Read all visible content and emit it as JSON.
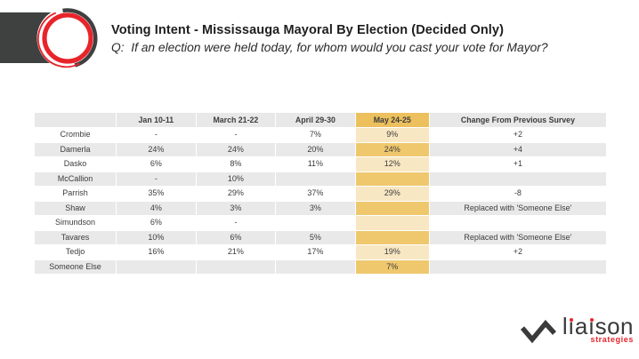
{
  "slide": {
    "title": "Voting Intent - Mississauga Mayoral By Election (Decided Only)",
    "question": "Q:  If an election were held today, for whom would you cast your vote for Mayor?"
  },
  "table": {
    "columns": [
      "",
      "Jan 10-11",
      "March 21-22",
      "April 29-30",
      "May 24-25",
      "Change From Previous Survey"
    ],
    "highlight_column_index": 4,
    "highlight_column": "May 24-25",
    "rows": [
      {
        "name": "Crombie",
        "values": [
          "-",
          "-",
          "7%",
          "9%"
        ],
        "change": "+2"
      },
      {
        "name": "Damerla",
        "values": [
          "24%",
          "24%",
          "20%",
          "24%"
        ],
        "change": "+4"
      },
      {
        "name": "Dasko",
        "values": [
          "6%",
          "8%",
          "11%",
          "12%"
        ],
        "change": "+1"
      },
      {
        "name": "McCallion",
        "values": [
          "-",
          "10%",
          "",
          ""
        ],
        "change": ""
      },
      {
        "name": "Parrish",
        "values": [
          "35%",
          "29%",
          "37%",
          "29%"
        ],
        "change": "-8"
      },
      {
        "name": "Shaw",
        "values": [
          "4%",
          "3%",
          "3%",
          ""
        ],
        "change": "Replaced with 'Someone Else'"
      },
      {
        "name": "Simundson",
        "values": [
          "6%",
          "-",
          "",
          ""
        ],
        "change": ""
      },
      {
        "name": "Tavares",
        "values": [
          "10%",
          "6%",
          "5%",
          ""
        ],
        "change": "Replaced with 'Someone Else'"
      },
      {
        "name": "Tedjo",
        "values": [
          "16%",
          "21%",
          "17%",
          "19%"
        ],
        "change": "+2"
      },
      {
        "name": "Someone Else",
        "values": [
          "",
          "",
          "",
          "7%"
        ],
        "change": ""
      }
    ]
  },
  "footer_logo": {
    "brand": "liaison",
    "tagline": "strategies"
  },
  "icons": {
    "top_left": "liaison-ring-logo",
    "footer": "trend-zigzag-icon"
  },
  "colors": {
    "accent_red": "#e8242b",
    "dark_gray": "#3f4040",
    "header_gray": "#e8e8e8",
    "stripe_gray": "#e9e9e9",
    "gold_header": "#ecc05d",
    "gold_strong": "#efc86e",
    "gold_light": "#f8e7c3",
    "text_dark": "#3c3c3c",
    "title_dark": "#1e1e1e"
  }
}
